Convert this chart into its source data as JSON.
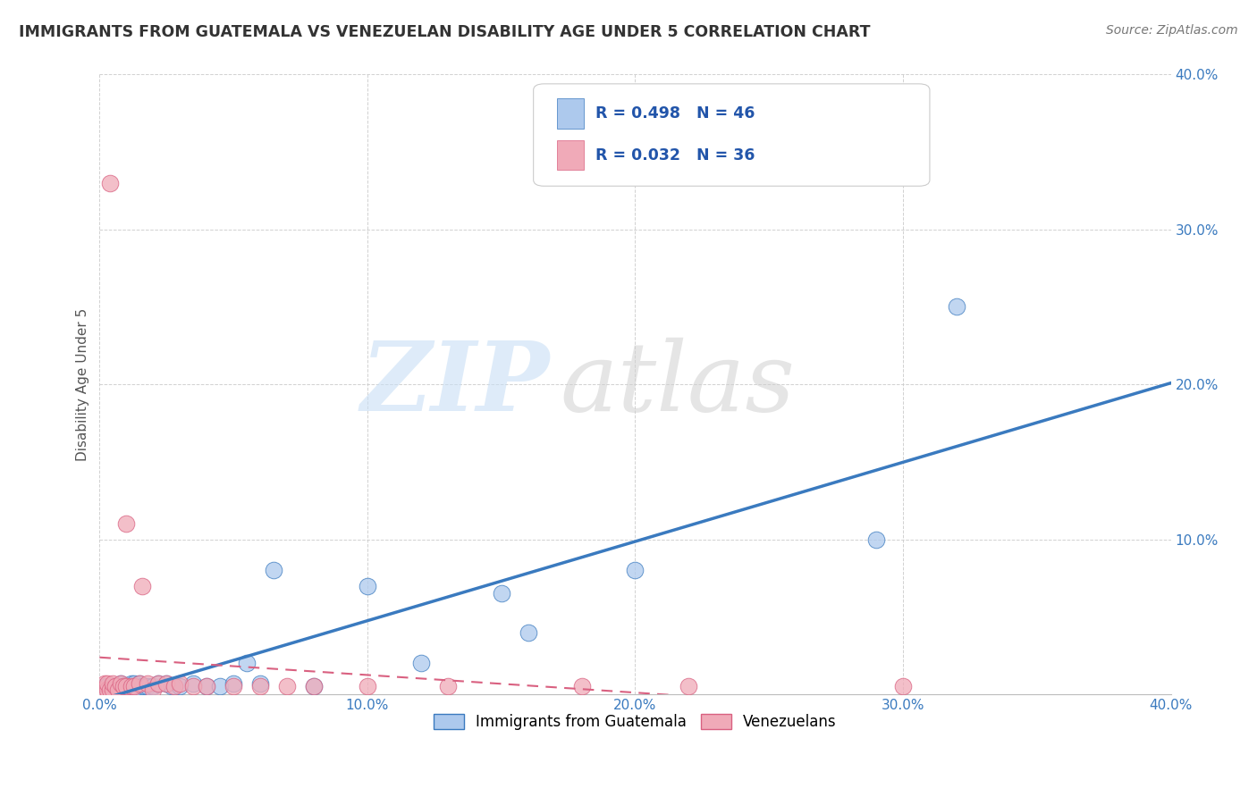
{
  "title": "IMMIGRANTS FROM GUATEMALA VS VENEZUELAN DISABILITY AGE UNDER 5 CORRELATION CHART",
  "source": "Source: ZipAtlas.com",
  "ylabel": "Disability Age Under 5",
  "xlim": [
    0.0,
    0.4
  ],
  "ylim": [
    0.0,
    0.4
  ],
  "xticks": [
    0.0,
    0.1,
    0.2,
    0.3,
    0.4
  ],
  "yticks": [
    0.1,
    0.2,
    0.3,
    0.4
  ],
  "xticklabels": [
    "0.0%",
    "10.0%",
    "20.0%",
    "30.0%",
    "40.0%"
  ],
  "yticklabels": [
    "10.0%",
    "20.0%",
    "30.0%",
    "40.0%"
  ],
  "r_guatemala": 0.498,
  "n_guatemala": 46,
  "r_venezuela": 0.032,
  "n_venezuela": 36,
  "color_guatemala": "#adc9ed",
  "color_venezuela": "#f0aab8",
  "color_trend_guatemala": "#3a7abf",
  "color_trend_venezuela": "#d96080",
  "background_color": "#ffffff",
  "legend_labels": [
    "Immigrants from Guatemala",
    "Venezuelans"
  ],
  "guatemala_x": [
    0.001,
    0.002,
    0.002,
    0.003,
    0.003,
    0.004,
    0.004,
    0.005,
    0.005,
    0.006,
    0.006,
    0.007,
    0.007,
    0.008,
    0.008,
    0.009,
    0.009,
    0.01,
    0.011,
    0.012,
    0.013,
    0.014,
    0.015,
    0.016,
    0.017,
    0.018,
    0.02,
    0.022,
    0.025,
    0.027,
    0.03,
    0.035,
    0.04,
    0.045,
    0.05,
    0.055,
    0.06,
    0.065,
    0.08,
    0.1,
    0.12,
    0.15,
    0.16,
    0.2,
    0.29,
    0.32
  ],
  "guatemala_y": [
    0.003,
    0.003,
    0.005,
    0.003,
    0.005,
    0.003,
    0.005,
    0.003,
    0.005,
    0.003,
    0.005,
    0.003,
    0.005,
    0.003,
    0.007,
    0.003,
    0.005,
    0.005,
    0.003,
    0.007,
    0.007,
    0.003,
    0.007,
    0.005,
    0.005,
    0.005,
    0.005,
    0.007,
    0.007,
    0.005,
    0.005,
    0.007,
    0.005,
    0.005,
    0.007,
    0.02,
    0.007,
    0.08,
    0.005,
    0.07,
    0.02,
    0.065,
    0.04,
    0.08,
    0.1,
    0.25
  ],
  "venezuela_x": [
    0.001,
    0.002,
    0.002,
    0.003,
    0.003,
    0.004,
    0.004,
    0.005,
    0.005,
    0.006,
    0.007,
    0.008,
    0.009,
    0.01,
    0.01,
    0.012,
    0.013,
    0.015,
    0.016,
    0.018,
    0.02,
    0.022,
    0.025,
    0.028,
    0.03,
    0.035,
    0.04,
    0.05,
    0.06,
    0.07,
    0.08,
    0.1,
    0.13,
    0.18,
    0.22,
    0.3
  ],
  "venezuela_y": [
    0.003,
    0.003,
    0.007,
    0.003,
    0.007,
    0.003,
    0.33,
    0.003,
    0.007,
    0.005,
    0.003,
    0.007,
    0.005,
    0.11,
    0.005,
    0.005,
    0.005,
    0.007,
    0.07,
    0.007,
    0.003,
    0.007,
    0.007,
    0.005,
    0.007,
    0.005,
    0.005,
    0.005,
    0.005,
    0.005,
    0.005,
    0.005,
    0.005,
    0.005,
    0.005,
    0.005
  ]
}
